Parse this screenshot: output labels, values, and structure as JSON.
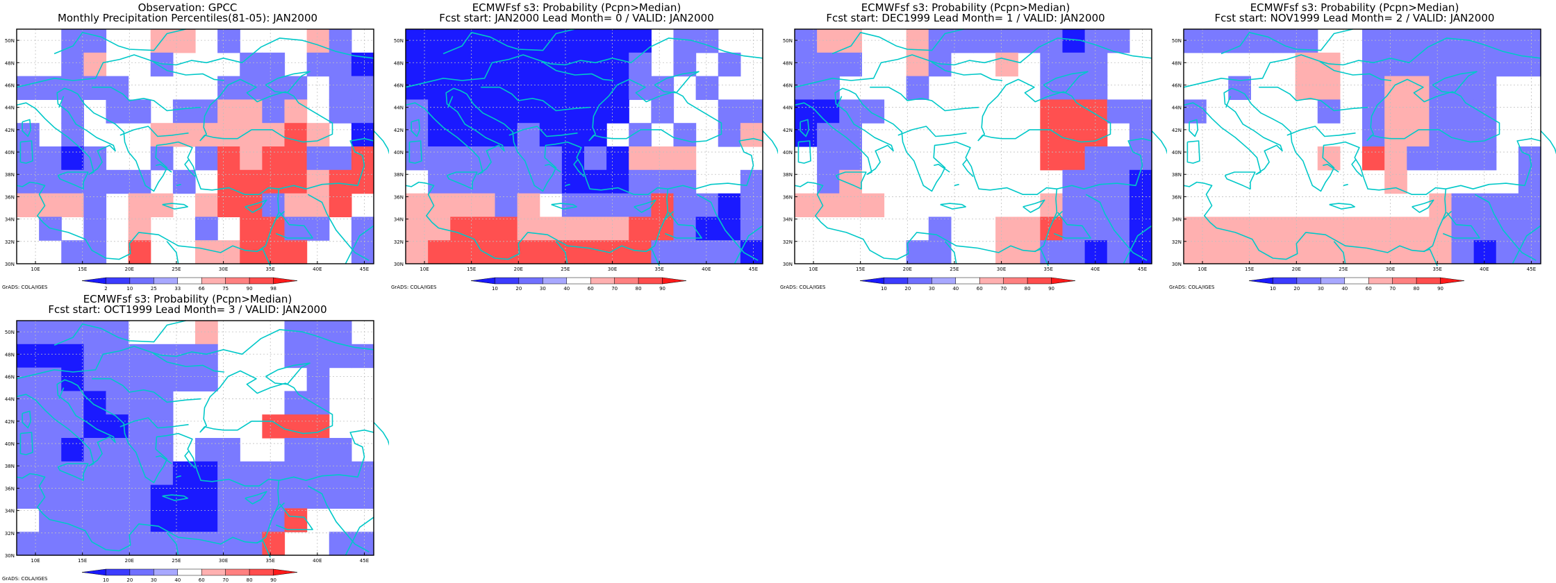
{
  "page": {
    "panels": [
      {
        "title_line1": "Observation: GPCC",
        "title_line2": "Monthly Precipitation Percentiles(81-05): JAN2000",
        "legend": {
          "levels": [
            "2",
            "10",
            "25",
            "33",
            "66",
            "75",
            "90",
            "98"
          ],
          "colors": [
            "#1a1aff",
            "#3c3cff",
            "#7070ff",
            "#a8a8ff",
            "#ffffff",
            "#ffb0b0",
            "#ff8080",
            "#ff4d4d",
            "#ff1a1a"
          ]
        },
        "grid": [
          "WWbbWWRRWbWWWRbW",
          "WWbRWWbWWWbbWbbB",
          "bbbbbWWWWbbbbWbb",
          "WWbWbbWbbRRbRWbb",
          "bWbWWWRRRRRRMRWB",
          "bbBbWWbWbMRMMbbM",
          "bbbbbbWbWMMMMRMM",
          "RRRbWRRWRMMbRRMW",
          "WbWbWRWWbWMMbbWb",
          "WWbbWMWWRRMMMWWb"
        ]
      },
      {
        "title_line1": "ECMWFsf s3: Probability (Pcpn>Median)",
        "title_line2": "Fcst start: JAN2000   Lead Month= 0 / VALID: JAN2000",
        "legend": {
          "levels": [
            "10",
            "20",
            "30",
            "40",
            "60",
            "70",
            "80",
            "90"
          ],
          "colors": [
            "#1a1aff",
            "#3c3cff",
            "#7070ff",
            "#a8a8ff",
            "#ffffff",
            "#ffb0b0",
            "#ff8080",
            "#ff4d4d",
            "#ff1a1a"
          ]
        },
        "grid": [
          "BBBBBBBBBBBWbbWW",
          "BBBBBBBBBBbWbWbW",
          "BBBBBBBBBBbbWbWW",
          "bBBBBBBBBBWbWWbb",
          "bBBBBbBBBWbWbWbR",
          "bbbbbbbBbBRRRWWW",
          "WbbbbbbBBBbbbWWb",
          "RRRRbRWbbbbMbbBb",
          "RRMMMRRRRRMMbBBb",
          "RMMMMMMMMMMbbbbB"
        ]
      },
      {
        "title_line1": "ECMWFsf s3: Probability (Pcpn>Median)",
        "title_line2": "Fcst start: DEC1999   Lead Month= 1 / VALID: JAN2000",
        "legend": {
          "levels": [
            "10",
            "20",
            "30",
            "40",
            "60",
            "70",
            "80",
            "90"
          ],
          "colors": [
            "#1a1aff",
            "#3c3cff",
            "#7070ff",
            "#a8a8ff",
            "#ffffff",
            "#ffb0b0",
            "#ff8080",
            "#ff4d4d",
            "#ff1a1a"
          ]
        },
        "grid": [
          "bRRWWRbbbbbbBbbW",
          "bbbWWRbWWRWbbbWW",
          "bbWWWbWWWWWbbbWW",
          "BBbbWWWWWWWMMMbb",
          "BbbWWWWWWWWMMMWb",
          "WbbWWWWWWWWMMbbb",
          "WbRWWWWWWWWWbbbB",
          "RRRRWWWWWWWRbbbB",
          "WWWWWWbWWRRMbbbB",
          "WWWWWbbWWRRbbBbB"
        ]
      },
      {
        "title_line1": "ECMWFsf s3: Probability (Pcpn>Median)",
        "title_line2": "Fcst start: NOV1999   Lead Month= 2 / VALID: JAN2000",
        "legend": {
          "levels": [
            "10",
            "20",
            "30",
            "40",
            "60",
            "70",
            "80",
            "90"
          ],
          "colors": [
            "#1a1aff",
            "#3c3cff",
            "#7070ff",
            "#a8a8ff",
            "#ffffff",
            "#ffb0b0",
            "#ff8080",
            "#ff4d4d",
            "#ff1a1a"
          ]
        },
        "grid": [
          "bbbbbbWWbbbbbbbb",
          "WWWWWRRWbbbbbbbb",
          "WWbWWRRWbRRbbbWW",
          "bWWWWWbWbRRbbbWW",
          "WWWWWWWWbRRbbbWW",
          "WWWWWWRWMRbbbbWb",
          "WWWWWWWWWRWWWWWb",
          "WWWWWWWWWWWRbbbb",
          "RRRRRRRRRRRRbbbb",
          "RRRRRRRRRRRRbBbb"
        ]
      },
      {
        "title_line1": "ECMWFsf s3: Probability (Pcpn>Median)",
        "title_line2": "Fcst start: OCT1999   Lead Month= 3 / VALID: JAN2000",
        "legend": {
          "levels": [
            "10",
            "20",
            "30",
            "40",
            "60",
            "70",
            "80",
            "90"
          ],
          "colors": [
            "#1a1aff",
            "#3c3cff",
            "#7070ff",
            "#a8a8ff",
            "#ffffff",
            "#ffb0b0",
            "#ff8080",
            "#ff4d4d",
            "#ff1a1a"
          ]
        },
        "grid": [
          "bbbbbWWWRWWWbbbW",
          "BBBbbbbbbWWWbbbb",
          "bbBbbbbbbWWWWbWW",
          "bbbBbbbWWWWWbbWW",
          "bbbBBbbWWWWMMMWW",
          "bbBbbbbWbbWWbbbW",
          "bbbbbbbBBbbbbbbb",
          "bbbbbbBBBbbbbbbb",
          "WbbbbbBBBbbbMWWW",
          "bbbbbbbbbbbMWWbb"
        ]
      }
    ],
    "axes": {
      "lat_labels": [
        "50N",
        "48N",
        "46N",
        "44N",
        "42N",
        "40N",
        "38N",
        "36N",
        "34N",
        "32N",
        "30N"
      ],
      "lon_labels": [
        "10E",
        "15E",
        "20E",
        "25E",
        "30E",
        "35E",
        "40E",
        "45E"
      ]
    },
    "watermark": "GrADS: COLA/IGES",
    "colors": {
      "B": "#1a1aff",
      "b": "#7a7aff",
      "W": "#ffffff",
      "R": "#ffb0b0",
      "M": "#ff5050",
      "coast": "#00c8c8",
      "grid": "#c0c0c0"
    }
  }
}
